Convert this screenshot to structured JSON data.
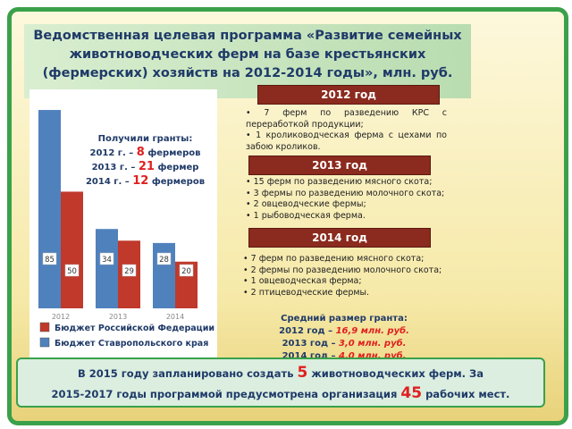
{
  "title": {
    "lines": [
      "Ведомственная целевая программа «Развитие семейных",
      "животноводческих ферм на базе крестьянских",
      "(фермерских) хозяйств на 2012-2014 годы», млн. руб."
    ]
  },
  "chart_data": {
    "type": "bar",
    "categories": [
      "2012",
      "2013",
      "2014"
    ],
    "series": [
      {
        "name": "Бюджет Российской Федерации",
        "color": "#c0392b",
        "values": [
          50,
          29,
          20
        ]
      },
      {
        "name": "Бюджет Ставропольского края",
        "color": "#4f81bd",
        "values": [
          85,
          34,
          28
        ]
      }
    ],
    "ylim": [
      0,
      90
    ]
  },
  "grants": {
    "title": "Получили гранты:",
    "rows": [
      {
        "prefix": "2012 г. –",
        "number": "8",
        "suffix": "фермеров"
      },
      {
        "prefix": "2013 г. –",
        "number": "21",
        "suffix": "фермер"
      },
      {
        "prefix": "2014 г. –",
        "number": "12",
        "suffix": "фермеров"
      }
    ]
  },
  "sections": [
    {
      "header": "2012 год",
      "items": [
        "7 ферм по разведению КРС с переработкой продукции;",
        "1 кролиководческая ферма с цехами по забою кроликов."
      ]
    },
    {
      "header": "2013 год",
      "items": [
        "15 ферм по разведению мясного скота;",
        "3 фермы по разведению молочного скота;",
        "2 овцеводческие фермы;",
        "1 рыбоводческая ферма."
      ]
    },
    {
      "header": "2014 год",
      "items": [
        "7 ферм по разведению мясного скота;",
        "2 фермы по разведению молочного скота;",
        "1 овцеводческая ферма;",
        "2 птицеводческие фермы."
      ]
    }
  ],
  "average_grant": {
    "title": "Средний размер гранта:",
    "rows": [
      {
        "year": "2012 год –",
        "value": "16,9 млн. руб."
      },
      {
        "year": "2013 год –",
        "value": "3,0 млн. руб."
      },
      {
        "year": "2014 год –",
        "value": "4,0 млн. руб."
      }
    ]
  },
  "footer": {
    "lines": [
      [
        "В 2015 году запланировано создать",
        "5",
        "животноводческих ферм. За"
      ],
      [
        "2015-2017 годы программой предусмотрена организация",
        "45",
        "рабочих мест."
      ]
    ]
  }
}
